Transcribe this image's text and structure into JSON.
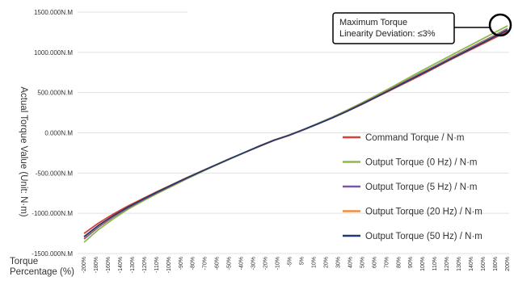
{
  "chart_data": {
    "type": "line",
    "ylabel": "Actual Torque Value (Unit: N·m)",
    "xlabel_line1": "Torque",
    "xlabel_line2": "Percentage (%)",
    "ylim": [
      -1500,
      1500
    ],
    "y_ticks": [
      1500,
      1000,
      500,
      0,
      -500,
      -1000,
      -1500
    ],
    "y_tick_labels": [
      "1500.000N.M",
      "1000.000N.M",
      "500.000N.M",
      "0.000N.M",
      "-500.000N.M",
      "-1000.000N.M",
      "-1500.000N.M"
    ],
    "x_ticks": [
      -200,
      -180,
      -160,
      -140,
      -130,
      -120,
      -110,
      -100,
      -90,
      -80,
      -70,
      -60,
      -50,
      -40,
      -30,
      -20,
      -10,
      -5,
      5,
      10,
      20,
      30,
      40,
      50,
      60,
      70,
      80,
      90,
      100,
      110,
      120,
      130,
      140,
      160,
      180,
      200
    ],
    "x_tick_labels": [
      "-200%",
      "-180%",
      "-160%",
      "-140%",
      "-130%",
      "-120%",
      "-110%",
      "-100%",
      "-90%",
      "-80%",
      "-70%",
      "-60%",
      "-50%",
      "-40%",
      "-30%",
      "-20%",
      "-10%",
      "-5%",
      "5%",
      "10%",
      "20%",
      "30%",
      "40%",
      "50%",
      "60%",
      "70%",
      "80%",
      "90%",
      "100%",
      "110%",
      "120%",
      "130%",
      "140%",
      "160%",
      "180%",
      "200%"
    ],
    "grid": true,
    "legend_position": "right-bottom",
    "series": [
      {
        "name": "Command Torque / N·m",
        "color": "#d9403a",
        "values": [
          -1250,
          -1120,
          -1010,
          -910,
          -820,
          -730,
          -645,
          -560,
          -480,
          -400,
          -320,
          -245,
          -170,
          -95,
          -35,
          35,
          110,
          185,
          265,
          350,
          440,
          530,
          620,
          710,
          805,
          900,
          990,
          1080,
          1170,
          1260
        ]
      },
      {
        "name": "Output Torque (0 Hz) / N·m",
        "color": "#8dbb48",
        "values": [
          -1360,
          -1200,
          -1070,
          -950,
          -850,
          -755,
          -665,
          -575,
          -490,
          -405,
          -325,
          -245,
          -165,
          -90,
          -30,
          40,
          115,
          195,
          280,
          370,
          465,
          560,
          660,
          760,
          855,
          950,
          1045,
          1140,
          1235,
          1330
        ]
      },
      {
        "name": "Output Torque (5 Hz) / N·m",
        "color": "#7b57a8",
        "values": [
          -1320,
          -1170,
          -1045,
          -935,
          -838,
          -745,
          -655,
          -568,
          -484,
          -402,
          -322,
          -244,
          -166,
          -92,
          -32,
          38,
          112,
          190,
          272,
          360,
          452,
          545,
          640,
          735,
          828,
          922,
          1015,
          1108,
          1200,
          1295
        ]
      },
      {
        "name": "Output Torque (20 Hz) / N·m",
        "color": "#ef8d3b",
        "values": [
          -1300,
          -1155,
          -1035,
          -928,
          -832,
          -740,
          -651,
          -565,
          -482,
          -401,
          -321,
          -243,
          -166,
          -92,
          -32,
          37,
          111,
          188,
          270,
          357,
          448,
          540,
          634,
          728,
          820,
          914,
          1006,
          1098,
          1190,
          1285
        ]
      },
      {
        "name": "Output Torque (50 Hz) / N·m",
        "color": "#1f3c6e",
        "values": [
          -1290,
          -1148,
          -1030,
          -925,
          -830,
          -738,
          -650,
          -564,
          -481,
          -400,
          -320,
          -243,
          -166,
          -92,
          -32,
          37,
          110,
          187,
          268,
          355,
          445,
          537,
          630,
          723,
          815,
          908,
          1000,
          1092,
          1183,
          1278
        ]
      }
    ],
    "annotation": "Maximum Torque\nLinearity Deviation: ≤3%"
  }
}
